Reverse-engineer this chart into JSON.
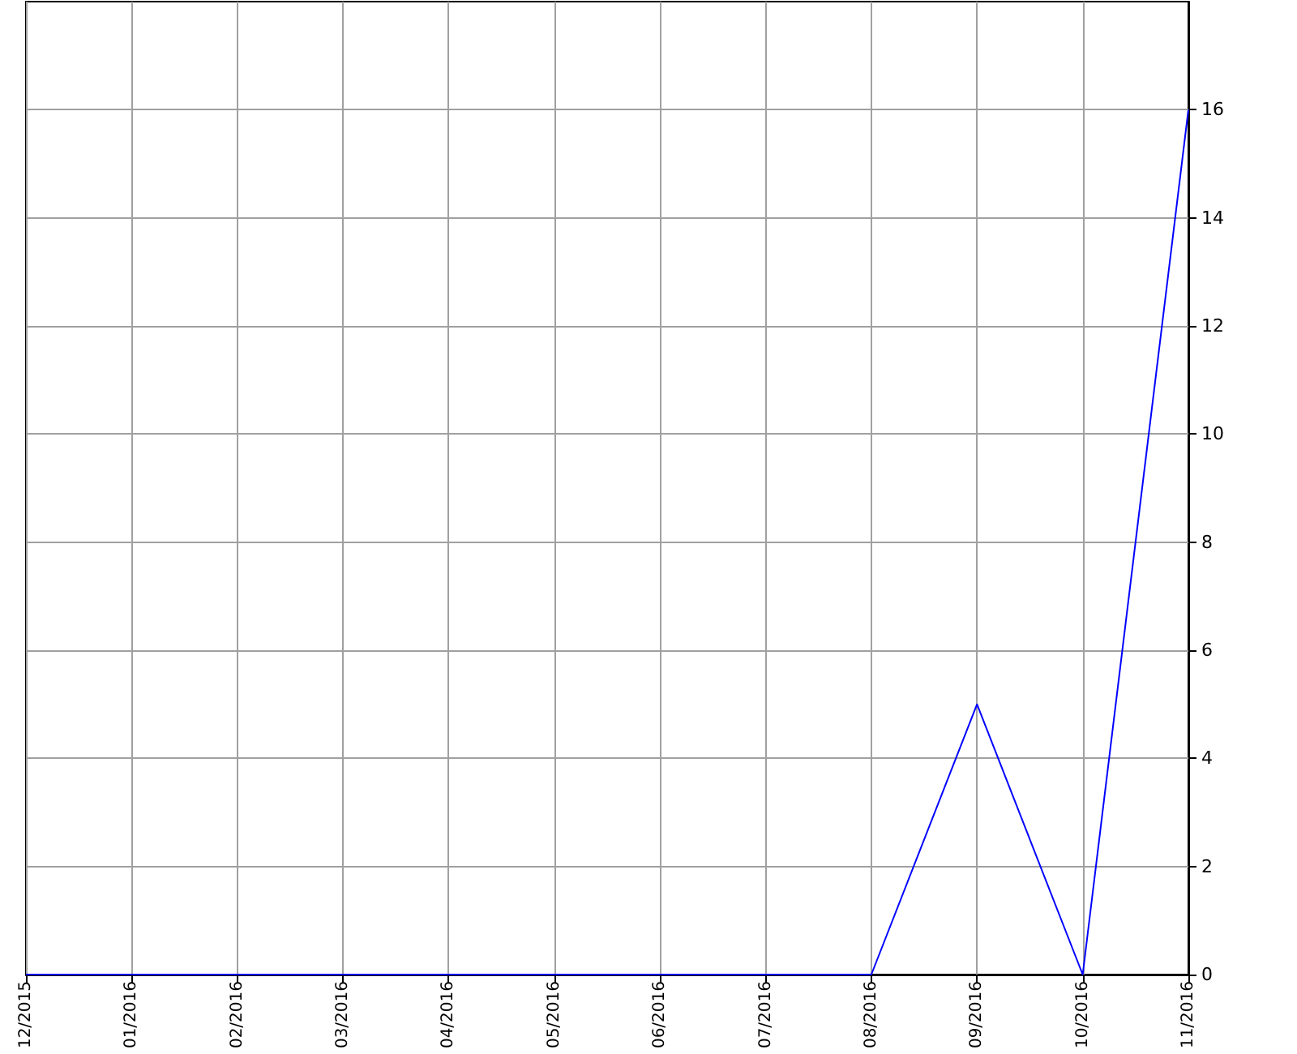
{
  "chart_data": {
    "type": "line",
    "categories": [
      "12/2015",
      "01/2016",
      "02/2016",
      "03/2016",
      "04/2016",
      "05/2016",
      "06/2016",
      "07/2016",
      "08/2016",
      "09/2016",
      "10/2016",
      "11/2016"
    ],
    "series": [
      {
        "color": "#0000ff",
        "values": [
          0,
          0,
          0,
          0,
          0,
          0,
          0,
          0,
          0,
          5,
          0,
          16
        ]
      }
    ],
    "ylim": [
      0,
      18
    ],
    "yticks": [
      0,
      2,
      4,
      6,
      8,
      10,
      12,
      14,
      16
    ],
    "grid": true,
    "marker": "none",
    "line_style": "solid"
  }
}
